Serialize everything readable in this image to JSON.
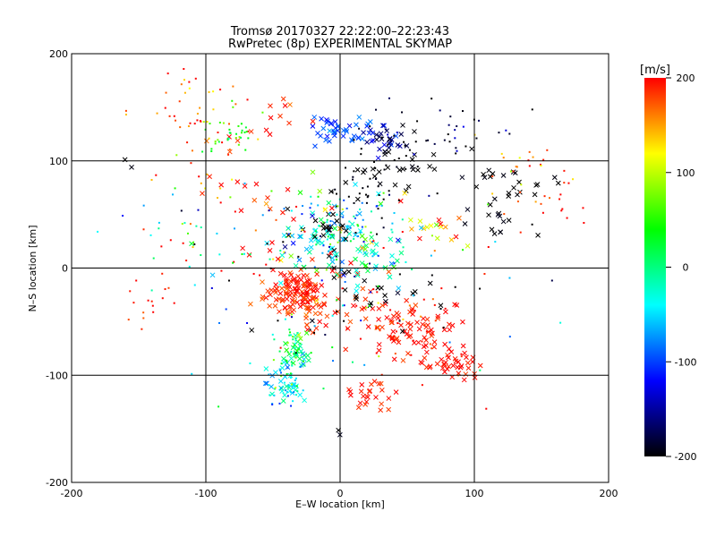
{
  "chart_data": {
    "type": "scatter",
    "title": "Tromsø 20170327 22:22:00–22:23:43",
    "subtitle": "RwPretec (8p) EXPERIMENTAL SKYMAP",
    "xlabel": "E–W location [km]",
    "ylabel": "N–S location [km]",
    "xlim": [
      -200,
      200
    ],
    "ylim": [
      -200,
      200
    ],
    "xticks": [
      -200,
      -100,
      0,
      100,
      200
    ],
    "yticks": [
      -200,
      -100,
      0,
      100,
      200
    ],
    "grid": true,
    "colorbar": {
      "label": "[m/s]",
      "min": -200,
      "max": 200,
      "ticks": [
        200,
        100,
        0,
        -100,
        -200
      ],
      "colormap": [
        "#000000",
        "#0000ff",
        "#00ffff",
        "#00ff00",
        "#ffff00",
        "#ff0000"
      ]
    },
    "markers": [
      "x",
      "dot"
    ],
    "clusters": [
      {
        "x": -28,
        "y": -22,
        "sx": 9,
        "sy": 10,
        "v": 195,
        "sv": 12,
        "n": 90,
        "marker": "x"
      },
      {
        "x": -45,
        "y": -28,
        "sx": 8,
        "sy": 8,
        "v": 185,
        "sv": 15,
        "n": 30,
        "marker": "x"
      },
      {
        "x": -22,
        "y": -45,
        "sx": 5,
        "sy": 8,
        "v": 180,
        "sv": 20,
        "n": 14,
        "marker": "x"
      },
      {
        "x": -32,
        "y": -78,
        "sx": 5,
        "sy": 8,
        "v": 20,
        "sv": 35,
        "n": 30,
        "marker": "x"
      },
      {
        "x": -40,
        "y": -108,
        "sx": 6,
        "sy": 10,
        "v": -50,
        "sv": 25,
        "n": 30,
        "marker": "x"
      },
      {
        "x": 55,
        "y": -60,
        "sx": 18,
        "sy": 14,
        "v": 195,
        "sv": 8,
        "n": 70,
        "marker": "x"
      },
      {
        "x": 85,
        "y": -88,
        "sx": 12,
        "sy": 8,
        "v": 195,
        "sv": 8,
        "n": 40,
        "marker": "x"
      },
      {
        "x": 25,
        "y": -120,
        "sx": 10,
        "sy": 8,
        "v": 190,
        "sv": 15,
        "n": 25,
        "marker": "x"
      },
      {
        "x": 0,
        "y": -35,
        "sx": 20,
        "sy": 14,
        "v": 190,
        "sv": 15,
        "n": 30,
        "marker": "x"
      },
      {
        "x": 5,
        "y": 128,
        "sx": 12,
        "sy": 6,
        "v": -95,
        "sv": 15,
        "n": 45,
        "marker": "x"
      },
      {
        "x": 33,
        "y": 118,
        "sx": 9,
        "sy": 8,
        "v": -150,
        "sv": 30,
        "n": 30,
        "marker": "x"
      },
      {
        "x": 40,
        "y": 95,
        "sx": 25,
        "sy": 12,
        "v": -200,
        "sv": 5,
        "n": 25,
        "marker": "x"
      },
      {
        "x": 130,
        "y": 75,
        "sx": 20,
        "sy": 10,
        "v": -200,
        "sv": 5,
        "n": 22,
        "marker": "x"
      },
      {
        "x": 120,
        "y": 40,
        "sx": 12,
        "sy": 10,
        "v": -200,
        "sv": 5,
        "n": 14,
        "marker": "x"
      },
      {
        "x": 70,
        "y": 40,
        "sx": 12,
        "sy": 12,
        "v": 150,
        "sv": 50,
        "n": 16,
        "marker": "x"
      },
      {
        "x": -10,
        "y": 25,
        "sx": 15,
        "sy": 12,
        "v": -40,
        "sv": 25,
        "n": 40,
        "marker": "x"
      },
      {
        "x": -10,
        "y": 35,
        "sx": 12,
        "sy": 10,
        "v": -200,
        "sv": 5,
        "n": 18,
        "marker": "x"
      },
      {
        "x": 20,
        "y": 10,
        "sx": 15,
        "sy": 12,
        "v": -10,
        "sv": 40,
        "n": 40,
        "marker": "x"
      },
      {
        "x": 30,
        "y": -25,
        "sx": 25,
        "sy": 12,
        "v": -200,
        "sv": 5,
        "n": 20,
        "marker": "x"
      },
      {
        "x": -60,
        "y": 140,
        "sx": 18,
        "sy": 10,
        "v": 190,
        "sv": 15,
        "n": 14,
        "marker": "x"
      },
      {
        "x": -70,
        "y": 80,
        "sx": 20,
        "sy": 15,
        "v": 190,
        "sv": 15,
        "n": 12,
        "marker": "x"
      },
      {
        "x": -15,
        "y": 30,
        "sx": 40,
        "sy": 30,
        "v": 0,
        "sv": 200,
        "n": 60,
        "marker": "x"
      },
      {
        "x": -105,
        "y": 145,
        "sx": 22,
        "sy": 25,
        "v": 170,
        "sv": 40,
        "n": 50,
        "marker": "dot"
      },
      {
        "x": -85,
        "y": 125,
        "sx": 15,
        "sy": 12,
        "v": 40,
        "sv": 30,
        "n": 35,
        "marker": "dot"
      },
      {
        "x": -140,
        "y": -30,
        "sx": 15,
        "sy": 12,
        "v": 190,
        "sv": 15,
        "n": 15,
        "marker": "dot"
      },
      {
        "x": -110,
        "y": 40,
        "sx": 25,
        "sy": 25,
        "v": 80,
        "sv": 100,
        "n": 35,
        "marker": "dot"
      },
      {
        "x": 80,
        "y": 130,
        "sx": 30,
        "sy": 15,
        "v": -180,
        "sv": 30,
        "n": 35,
        "marker": "dot"
      },
      {
        "x": 130,
        "y": 90,
        "sx": 20,
        "sy": 12,
        "v": 150,
        "sv": 60,
        "n": 25,
        "marker": "dot"
      },
      {
        "x": 150,
        "y": 60,
        "sx": 15,
        "sy": 15,
        "v": 190,
        "sv": 15,
        "n": 15,
        "marker": "dot"
      },
      {
        "x": 20,
        "y": 80,
        "sx": 20,
        "sy": 25,
        "v": -200,
        "sv": 5,
        "n": 50,
        "marker": "dot"
      },
      {
        "x": 0,
        "y": 40,
        "sx": 22,
        "sy": 18,
        "v": -40,
        "sv": 60,
        "n": 80,
        "marker": "dot"
      },
      {
        "x": -35,
        "y": -80,
        "sx": 8,
        "sy": 15,
        "v": 20,
        "sv": 40,
        "n": 40,
        "marker": "dot"
      },
      {
        "x": -40,
        "y": -110,
        "sx": 8,
        "sy": 10,
        "v": -60,
        "sv": 30,
        "n": 30,
        "marker": "dot"
      },
      {
        "x": 0,
        "y": -10,
        "sx": 60,
        "sy": 50,
        "v": 0,
        "sv": 200,
        "n": 120,
        "marker": "dot"
      },
      {
        "x": 60,
        "y": -60,
        "sx": 30,
        "sy": 20,
        "v": 190,
        "sv": 20,
        "n": 30,
        "marker": "dot"
      },
      {
        "x": -160,
        "y": 100,
        "sx": 5,
        "sy": 5,
        "v": -200,
        "sv": 5,
        "n": 2,
        "marker": "x"
      },
      {
        "x": 0,
        "y": -150,
        "sx": 3,
        "sy": 5,
        "v": -200,
        "sv": 5,
        "n": 2,
        "marker": "x"
      }
    ]
  }
}
